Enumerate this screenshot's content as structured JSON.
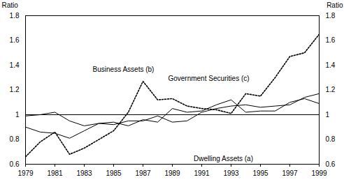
{
  "chart_data": {
    "type": "line",
    "ylabel": "Ratio",
    "x": [
      1979,
      1980,
      1981,
      1982,
      1983,
      1984,
      1985,
      1986,
      1987,
      1988,
      1989,
      1990,
      1991,
      1992,
      1993,
      1994,
      1995,
      1996,
      1997,
      1998,
      1999
    ],
    "series": [
      {
        "name": "Business Assets (b)",
        "color": "#000000",
        "line_style": "dotted",
        "values": [
          0.66,
          0.78,
          0.86,
          0.68,
          0.73,
          0.8,
          0.87,
          1.02,
          1.27,
          1.12,
          1.13,
          1.07,
          1.05,
          1.04,
          1.01,
          1.17,
          1.15,
          1.3,
          1.47,
          1.5,
          1.65
        ]
      },
      {
        "name": "Government Securities (c)",
        "color": "#000000",
        "line_style": "solid",
        "values": [
          0.99,
          1.0,
          1.02,
          0.95,
          0.91,
          0.93,
          0.94,
          0.91,
          0.96,
          0.94,
          1.05,
          1.02,
          1.03,
          1.08,
          1.12,
          1.02,
          1.03,
          1.03,
          1.1,
          1.13,
          1.09
        ]
      },
      {
        "name": "Dwelling Assets (a)",
        "color": "#000000",
        "line_style": "solid",
        "values": [
          0.9,
          0.86,
          0.85,
          0.81,
          0.87,
          0.93,
          0.92,
          0.95,
          0.95,
          0.99,
          0.94,
          0.95,
          1.02,
          1.05,
          1.07,
          1.08,
          1.06,
          1.07,
          1.08,
          1.14,
          1.17
        ]
      }
    ],
    "baseline": 1,
    "xlim": [
      1979,
      1999
    ],
    "xticks": [
      1979,
      1981,
      1983,
      1985,
      1987,
      1989,
      1991,
      1993,
      1995,
      1997,
      1999
    ],
    "ylim": [
      0.6,
      1.8
    ],
    "yticks": [
      0.6,
      0.8,
      1,
      1.2,
      1.4,
      1.6,
      1.8
    ],
    "grid": false
  }
}
